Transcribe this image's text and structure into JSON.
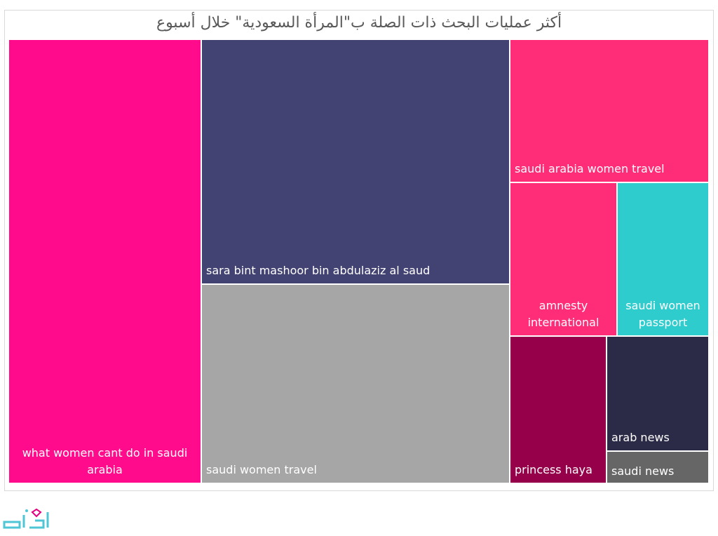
{
  "title": "أكثر عمليات البحث ذات الصلة ب\"المرأة السعودية\" خلال أسبوع",
  "logo": {
    "name": "ab3ad-logo",
    "color": "#4fc6d6",
    "accent": "#e6007e"
  },
  "chart_data": {
    "type": "treemap",
    "title": "أكثر عمليات البحث ذات الصلة ب\"المرأة السعودية\" خلال أسبوع",
    "items": [
      {
        "label": "what women cant do in saudi arabia",
        "display": "what women cant do in saudi\narabia",
        "value": 27.5,
        "color": "#ff0b8c"
      },
      {
        "label": "sara bint mashoor bin abdulaziz al saud",
        "display": "sara bint mashoor bin abdulaziz al saud",
        "value": 24.3,
        "color": "#434373"
      },
      {
        "label": "saudi women travel",
        "display": "saudi women travel",
        "value": 19.5,
        "color": "#a6a6a6"
      },
      {
        "label": "saudi arabia women travel",
        "display": "saudi arabia women travel",
        "value": 9.2,
        "color": "#ff2d78"
      },
      {
        "label": "amnesty international",
        "display": "amnesty\ninternational",
        "value": 5.3,
        "color": "#ff2d78"
      },
      {
        "label": "saudi women passport",
        "display": "saudi women\npassport",
        "value": 4.5,
        "color": "#2ecccd"
      },
      {
        "label": "princess haya",
        "display": "princess haya",
        "value": 4.3,
        "color": "#96004b"
      },
      {
        "label": "arab news",
        "display": "arab news",
        "value": 3.3,
        "color": "#2b2a47"
      },
      {
        "label": "saudi news",
        "display": "saudi news",
        "value": 1.1,
        "color": "#666666"
      }
    ]
  }
}
